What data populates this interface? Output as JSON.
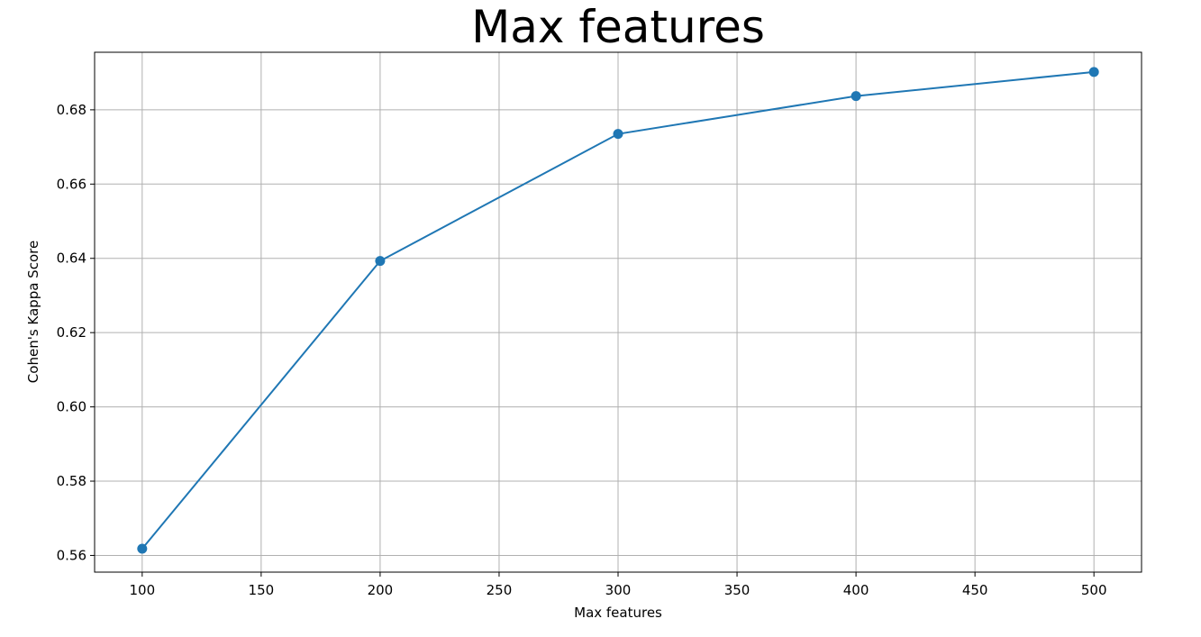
{
  "chart_data": {
    "type": "line",
    "title": "Max features",
    "xlabel": "Max features",
    "ylabel": "Cohen's Kappa Score",
    "xlim": [
      80,
      520
    ],
    "ylim": [
      0.5555,
      0.6955
    ],
    "x_ticks": [
      100,
      150,
      200,
      250,
      300,
      350,
      400,
      450,
      500
    ],
    "y_ticks": [
      0.56,
      0.58,
      0.6,
      0.62,
      0.64,
      0.66,
      0.68
    ],
    "x_tick_labels": [
      "100",
      "150",
      "200",
      "250",
      "300",
      "350",
      "400",
      "450",
      "500"
    ],
    "y_tick_labels": [
      "0.56",
      "0.58",
      "0.60",
      "0.62",
      "0.64",
      "0.66",
      "0.68"
    ],
    "grid": true,
    "markers": "circle",
    "series": [
      {
        "color": "#1f77b4",
        "x": [
          100,
          200,
          300,
          400,
          500
        ],
        "y": [
          0.5618,
          0.6393,
          0.6735,
          0.6837,
          0.6902
        ]
      }
    ]
  }
}
